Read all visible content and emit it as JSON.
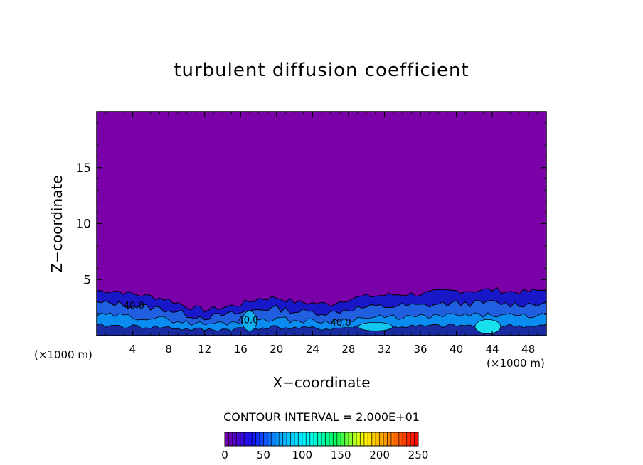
{
  "chart_data": {
    "type": "heatmap",
    "title": "turbulent diffusion coefficient",
    "xlabel": "X−coordinate",
    "ylabel": "Z−coordinate",
    "x_unit": "(×1000 m)",
    "z_unit": "(×1000 m)",
    "xlim": [
      0,
      50
    ],
    "ylim": [
      0,
      20
    ],
    "x_ticks": [
      4,
      8,
      12,
      16,
      20,
      24,
      28,
      32,
      36,
      40,
      44,
      48
    ],
    "y_ticks": [
      5,
      10,
      15
    ],
    "contour_interval": "CONTOUR INTERVAL = 2.000E+01",
    "colorbar": {
      "range": [
        0,
        250
      ],
      "ticks": [
        0,
        50,
        100,
        150,
        200,
        250
      ],
      "colors": [
        "#7a00a8",
        "#1010ff",
        "#0aa8ff",
        "#00ffff",
        "#00ff60",
        "#ffff00",
        "#ff8000",
        "#ff0000"
      ]
    },
    "background_value": 0,
    "contour_labels": [
      "40.0",
      "40.0",
      "40.0"
    ],
    "boundary_layer_top": [
      [
        0,
        4.0
      ],
      [
        2,
        4.0
      ],
      [
        4,
        3.7
      ],
      [
        6,
        3.5
      ],
      [
        8,
        3.2
      ],
      [
        10,
        2.6
      ],
      [
        12,
        2.3
      ],
      [
        14,
        2.5
      ],
      [
        16,
        2.8
      ],
      [
        18,
        3.3
      ],
      [
        20,
        3.4
      ],
      [
        22,
        3.0
      ],
      [
        24,
        2.9
      ],
      [
        26,
        2.8
      ],
      [
        28,
        3.3
      ],
      [
        30,
        3.5
      ],
      [
        32,
        3.6
      ],
      [
        34,
        3.7
      ],
      [
        36,
        3.7
      ],
      [
        38,
        3.9
      ],
      [
        40,
        4.0
      ],
      [
        42,
        4.0
      ],
      [
        44,
        4.1
      ],
      [
        46,
        3.9
      ],
      [
        48,
        3.9
      ],
      [
        50,
        4.1
      ]
    ]
  }
}
